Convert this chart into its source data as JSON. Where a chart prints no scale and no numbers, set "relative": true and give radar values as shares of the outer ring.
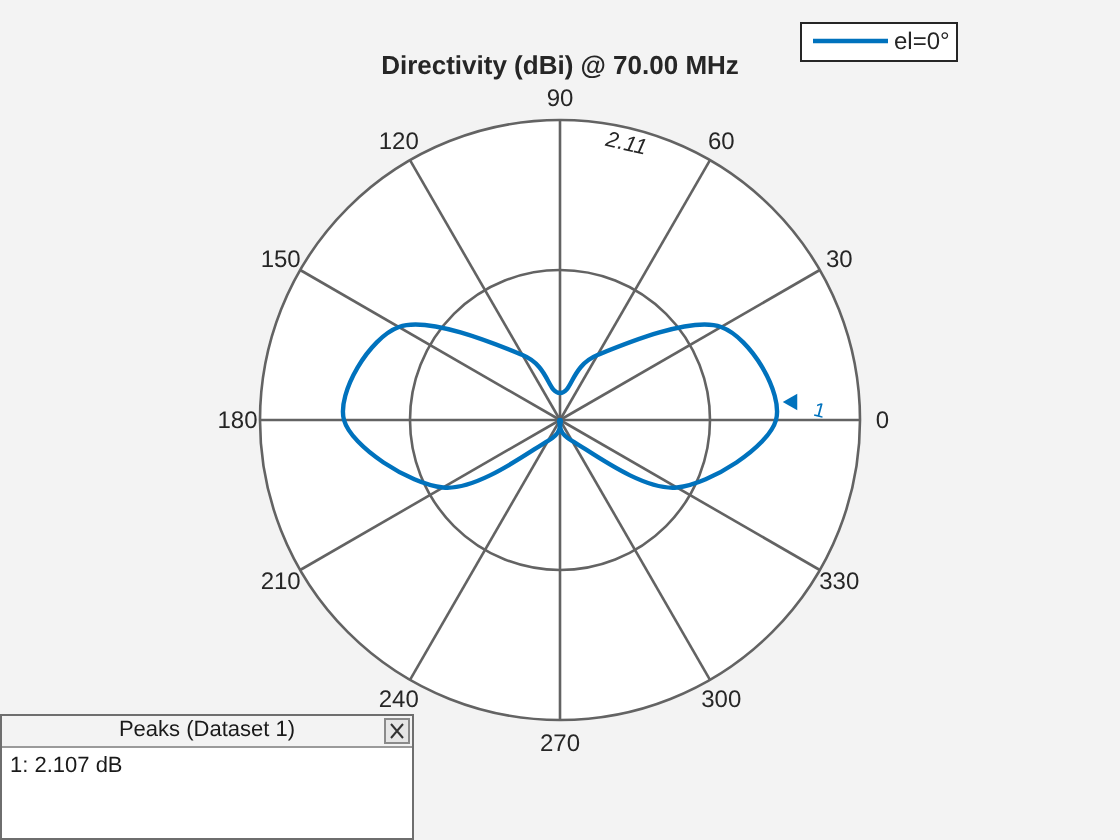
{
  "chart_data": {
    "type": "radar",
    "title": "Directivity (dBi) @ 70.00 MHz",
    "relative": true,
    "grid": true,
    "legend": "top right",
    "categories": [
      "90",
      "60",
      "30",
      "0",
      "330",
      "300",
      "270",
      "240",
      "210",
      "180",
      "150",
      "120"
    ],
    "series": [
      {
        "name": "el=0°",
        "color": "#0072bd",
        "values": [
          0.09,
          0.25,
          0.62,
          0.72,
          0.45,
          0.08,
          0,
          0.08,
          0.45,
          0.72,
          0.62,
          0.25
        ]
      }
    ],
    "annotations": [
      "2.11",
      {
        "text": "1",
        "x": "0"
      },
      "Peaks (Dataset 1)",
      "1: 2.107 dB"
    ]
  }
}
